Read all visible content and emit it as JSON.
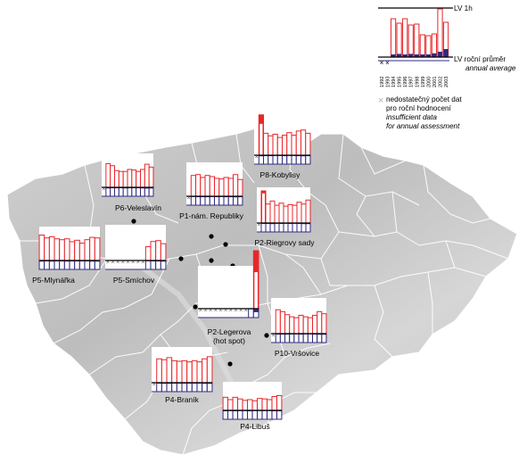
{
  "legend": {
    "lv_1h": "LV 1h",
    "lv_annual_cz": "LV roční průměr",
    "lv_annual_en": "annual average",
    "years": [
      "1992",
      "1993",
      "1994",
      "1995",
      "1996",
      "1997",
      "1998",
      "1999",
      "2000",
      "2001",
      "2002",
      "2003"
    ],
    "insufficient_symbol": "×",
    "insufficient_cz_1": "nedostatečný počet dat",
    "insufficient_cz_2": "pro roční hodnocení",
    "insufficient_en_1": "insufficient data",
    "insufficient_en_2": "for annual assessment",
    "colors": {
      "hourly_bar": "#e8262a",
      "annual_bar": "#2e2a80",
      "missing": "#666666"
    },
    "sample_hourly": [
      0.45,
      0.62,
      0.86,
      0.76,
      0.86,
      0.72,
      0.74,
      0.5,
      0.48,
      0.52,
      1.08,
      0.78
    ],
    "sample_annual": [
      0.12,
      0.14,
      0.1,
      0.12,
      0.1,
      0.12,
      0.1,
      0.1,
      0.1,
      0.14,
      0.2,
      0.3
    ],
    "sample_missing": [
      true,
      true,
      false,
      false,
      false,
      false,
      false,
      false,
      false,
      false,
      false,
      false
    ]
  },
  "stations": [
    {
      "label": "P6-Veleslavín",
      "missing": [
        true,
        false,
        false,
        false,
        false,
        false,
        false,
        false,
        false,
        false,
        false,
        false
      ],
      "hourly": [
        0.75,
        0.82,
        0.75,
        0.58,
        0.55,
        0.55,
        0.62,
        0.6,
        0.55,
        0.62,
        0.8,
        0.7
      ],
      "annual": [
        0.12,
        0.14,
        0.12,
        0.12,
        0.12,
        0.14,
        0.12,
        0.12,
        0.12,
        0.14,
        0.16,
        0.14
      ]
    },
    {
      "label": "P1-nám. Republiky",
      "missing": [
        true,
        false,
        false,
        false,
        false,
        false,
        false,
        false,
        false,
        false,
        false,
        false
      ],
      "hourly": [
        0.0,
        0.72,
        0.75,
        0.65,
        0.72,
        0.68,
        0.62,
        0.6,
        0.65,
        0.62,
        0.75,
        0.58
      ],
      "annual": [
        0.0,
        0.1,
        0.12,
        0.12,
        0.12,
        0.1,
        0.12,
        0.1,
        0.12,
        0.12,
        0.14,
        0.12
      ]
    },
    {
      "label": "P8-Kobylisy",
      "missing": [
        true,
        false,
        false,
        false,
        false,
        false,
        false,
        false,
        false,
        false,
        false,
        false
      ],
      "hourly": [
        0.0,
        1.25,
        0.68,
        0.6,
        0.65,
        0.55,
        0.62,
        0.7,
        0.62,
        0.75,
        0.78,
        0.68
      ],
      "annual": [
        0.0,
        0.14,
        0.12,
        0.12,
        0.1,
        0.1,
        0.12,
        0.1,
        0.1,
        0.12,
        0.14,
        0.12
      ]
    },
    {
      "label": "P2-Riegrovy sady",
      "missing": [
        true,
        false,
        false,
        false,
        false,
        false,
        false,
        false,
        false,
        false,
        false,
        false
      ],
      "hourly": [
        0.0,
        1.05,
        0.62,
        0.72,
        0.58,
        0.65,
        0.55,
        0.6,
        0.58,
        0.68,
        0.62,
        0.75
      ],
      "annual": [
        0.0,
        0.12,
        0.12,
        0.14,
        0.1,
        0.12,
        0.1,
        0.12,
        0.1,
        0.12,
        0.14,
        0.14
      ]
    },
    {
      "label": "P5-Mlynářka",
      "missing": [
        false,
        false,
        false,
        false,
        false,
        false,
        false,
        false,
        false,
        false,
        false,
        false
      ],
      "hourly": [
        0.88,
        0.78,
        0.82,
        0.75,
        0.72,
        0.75,
        0.65,
        0.7,
        0.6,
        0.72,
        0.8,
        0.78
      ],
      "annual": [
        0.14,
        0.12,
        0.14,
        0.12,
        0.12,
        0.14,
        0.12,
        0.12,
        0.12,
        0.12,
        0.14,
        0.14
      ]
    },
    {
      "label": "P5-Smíchov",
      "missing": [
        true,
        true,
        true,
        true,
        true,
        true,
        true,
        true,
        false,
        false,
        false,
        false
      ],
      "hourly": [
        0,
        0,
        0,
        0,
        0,
        0,
        0,
        0,
        0.45,
        0.62,
        0.65,
        0.55
      ],
      "annual": [
        0,
        0,
        0,
        0,
        0,
        0,
        0,
        0,
        0.1,
        0.12,
        0.12,
        0.14
      ]
    },
    {
      "label": "P2-Legerova\n(hot spot)",
      "missing": [
        true,
        true,
        true,
        true,
        true,
        true,
        true,
        true,
        true,
        true,
        false,
        false
      ],
      "hourly": [
        0,
        0,
        0,
        0,
        0,
        0,
        0,
        0,
        0,
        0,
        0,
        1.55
      ],
      "annual": [
        0,
        0,
        0,
        0,
        0,
        0,
        0,
        0,
        0,
        0,
        0,
        0.45
      ]
    },
    {
      "label": "P10-Vršovice",
      "missing": [
        true,
        false,
        false,
        false,
        false,
        false,
        false,
        false,
        false,
        false,
        false,
        false
      ],
      "hourly": [
        0.0,
        0.78,
        0.72,
        0.62,
        0.55,
        0.52,
        0.6,
        0.55,
        0.52,
        0.6,
        0.72,
        0.65
      ],
      "annual": [
        0.0,
        0.12,
        0.12,
        0.12,
        0.1,
        0.1,
        0.12,
        0.1,
        0.1,
        0.12,
        0.14,
        0.14
      ]
    },
    {
      "label": "P4-Braník",
      "missing": [
        true,
        false,
        false,
        false,
        false,
        false,
        false,
        false,
        false,
        false,
        false,
        false
      ],
      "hourly": [
        0.0,
        0.78,
        0.75,
        0.82,
        0.72,
        0.7,
        0.72,
        0.68,
        0.72,
        0.68,
        0.78,
        0.85
      ],
      "annual": [
        0.0,
        0.12,
        0.14,
        0.14,
        0.12,
        0.12,
        0.12,
        0.12,
        0.12,
        0.12,
        0.14,
        0.14
      ]
    },
    {
      "label": "P4-Libuš",
      "missing": [
        false,
        false,
        false,
        false,
        false,
        false,
        false,
        false,
        false,
        false,
        false,
        false
      ],
      "hourly": [
        0.55,
        0.45,
        0.55,
        0.48,
        0.42,
        0.45,
        0.4,
        0.5,
        0.48,
        0.45,
        0.58,
        0.62
      ],
      "annual": [
        0.12,
        0.1,
        0.12,
        0.1,
        0.1,
        0.12,
        0.1,
        0.1,
        0.1,
        0.1,
        0.12,
        0.12
      ]
    }
  ]
}
